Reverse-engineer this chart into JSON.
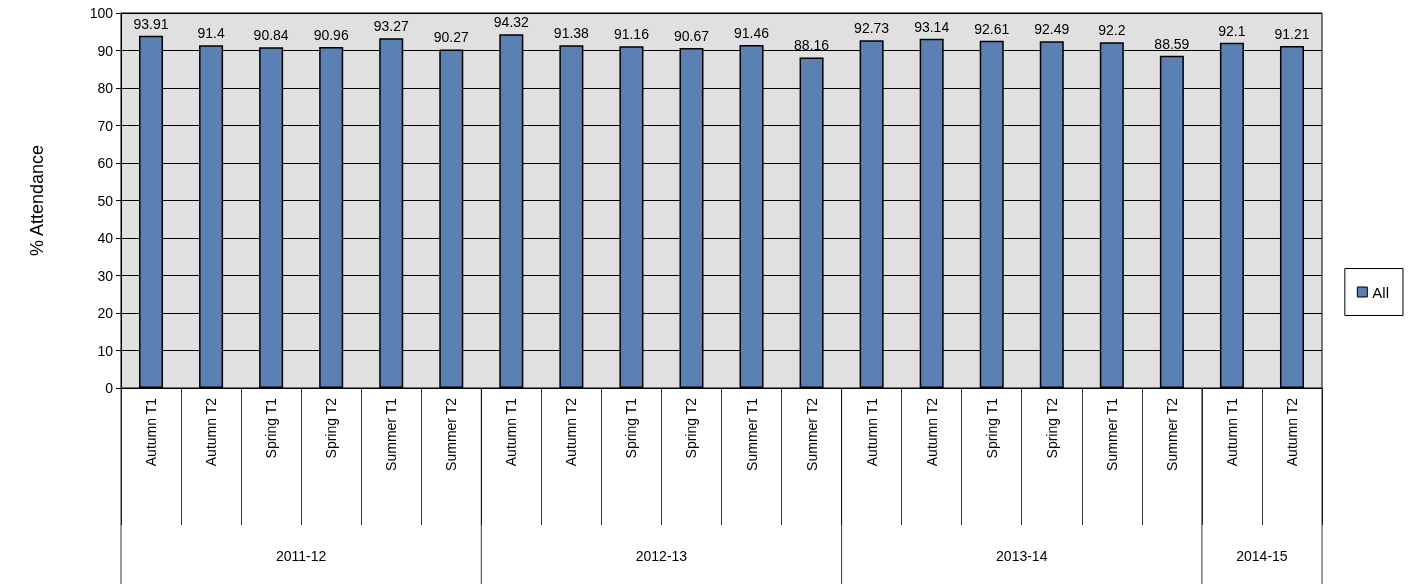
{
  "chart_data": {
    "type": "bar",
    "ylabel": "% Attendance",
    "categories": [
      "Autumn T1",
      "Autumn T2",
      "Spring T1",
      "Spring T2",
      "Summer T1",
      "Summer T2",
      "Autumn T1",
      "Autumn T2",
      "Spring T1",
      "Spring T2",
      "Summer T1",
      "Summer T2",
      "Autumn T1",
      "Autumn T2",
      "Spring T1",
      "Spring T2",
      "Summer T1",
      "Summer T2",
      "Autumn T1",
      "Autumn T2"
    ],
    "series": [
      {
        "name": "All",
        "color": "#5b80b4",
        "values": [
          93.91,
          91.4,
          90.84,
          90.96,
          93.27,
          90.27,
          94.32,
          91.38,
          91.16,
          90.67,
          91.46,
          88.16,
          92.73,
          93.14,
          92.61,
          92.49,
          92.2,
          88.59,
          92.1,
          91.21
        ]
      }
    ],
    "annotations": [
      "2011-12",
      "2012-13",
      "2013-14",
      "2014-15"
    ],
    "ylim": [
      0,
      100
    ],
    "yticks": [
      0,
      10,
      20,
      30,
      40,
      50,
      60,
      70,
      80,
      90,
      100
    ],
    "grid": "y",
    "legend": "right",
    "data_labels": true
  }
}
